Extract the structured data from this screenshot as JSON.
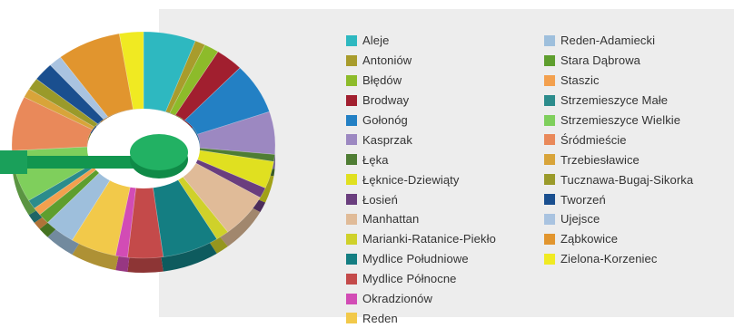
{
  "chart_data": {
    "type": "pie",
    "variant": "3d-donut",
    "title": "",
    "legend_position": "right",
    "slices": [
      {
        "label": "Aleje",
        "value": 7.0,
        "color": "#2eb8c0"
      },
      {
        "label": "Antoniów",
        "value": 1.4,
        "color": "#a89c2c"
      },
      {
        "label": "Błędów",
        "value": 2.0,
        "color": "#8dbb2a"
      },
      {
        "label": "Brodway",
        "value": 3.8,
        "color": "#a11f2f"
      },
      {
        "label": "Gołonóg",
        "value": 7.8,
        "color": "#2380c4"
      },
      {
        "label": "Kasprzak",
        "value": 6.6,
        "color": "#9c88c1"
      },
      {
        "label": "Łęka",
        "value": 1.1,
        "color": "#4f7d34"
      },
      {
        "label": "Łęknice-Dziewiąty",
        "value": 4.2,
        "color": "#e0e020"
      },
      {
        "label": "Łosień",
        "value": 1.6,
        "color": "#6a3e7e"
      },
      {
        "label": "Manhattan",
        "value": 6.8,
        "color": "#e0bb98"
      },
      {
        "label": "Marianki-Ratanice-Piekło",
        "value": 1.8,
        "color": "#cfd12a"
      },
      {
        "label": "Mydlice Południowe",
        "value": 7.6,
        "color": "#147e82"
      },
      {
        "label": "Mydlice Północne",
        "value": 4.7,
        "color": "#c44a4a"
      },
      {
        "label": "Okradzionów",
        "value": 1.6,
        "color": "#d24cb5"
      },
      {
        "label": "Reden",
        "value": 6.2,
        "color": "#f2c94a"
      },
      {
        "label": "Reden-Adamiecki",
        "value": 4.2,
        "color": "#9ebfdc"
      },
      {
        "label": "Stara Dąbrowa",
        "value": 1.6,
        "color": "#5e9e2e"
      },
      {
        "label": "Staszic",
        "value": 1.2,
        "color": "#f3a04e"
      },
      {
        "label": "Strzemieszyce Małe",
        "value": 1.4,
        "color": "#2c8c8c"
      },
      {
        "label": "Strzemieszyce Wielkie",
        "value": 8.0,
        "color": "#7fcf5c"
      },
      {
        "label": "Śródmieście",
        "value": 8.4,
        "color": "#e9895a"
      },
      {
        "label": "Trzebiesławice",
        "value": 1.4,
        "color": "#d8a43a"
      },
      {
        "label": "Tucznawa-Bugaj-Sikorka",
        "value": 1.8,
        "color": "#9a9a2a"
      },
      {
        "label": "Tworzeń",
        "value": 2.8,
        "color": "#1a4f8f"
      },
      {
        "label": "Ujejsce",
        "value": 1.8,
        "color": "#a9c3e0"
      },
      {
        "label": "Ząbkowice",
        "value": 8.6,
        "color": "#e1952e"
      },
      {
        "label": "Zielona-Korzeniec",
        "value": 3.2,
        "color": "#f0ea22"
      }
    ]
  }
}
